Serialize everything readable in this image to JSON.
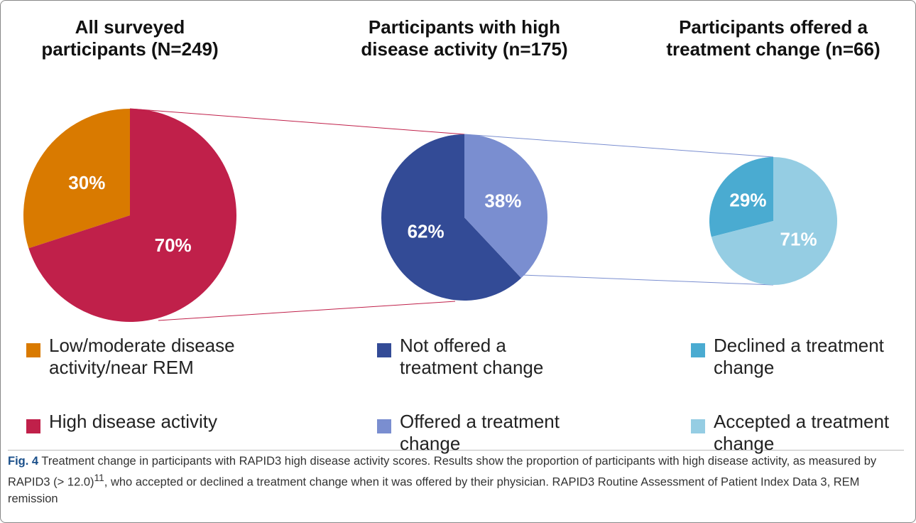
{
  "chart_data": [
    {
      "type": "pie",
      "title": "All surveyed participants (N=249)",
      "categories": [
        "Low/moderate disease activity/near REM",
        "High disease activity"
      ],
      "values": [
        30,
        70
      ],
      "value_labels": [
        "30%",
        "70%"
      ],
      "colors": [
        "#d97a00",
        "#c0204a"
      ]
    },
    {
      "type": "pie",
      "title": "Participants with high disease activity (n=175)",
      "categories": [
        "Not offered a treatment change",
        "Offered a treatment change"
      ],
      "values": [
        62,
        38
      ],
      "value_labels": [
        "62%",
        "38%"
      ],
      "colors": [
        "#334b96",
        "#7a8ed0"
      ]
    },
    {
      "type": "pie",
      "title": "Participants offered a treatment change (n=66)",
      "categories": [
        "Declined a treatment change",
        "Accepted a treatment change"
      ],
      "values": [
        29,
        71
      ],
      "value_labels": [
        "29%",
        "71%"
      ],
      "colors": [
        "#4aabd1",
        "#95cde3"
      ]
    }
  ],
  "caption": {
    "label": "Fig. 4",
    "text_before": "Treatment change in participants with RAPID3 high disease activity scores. Results show the proportion of participants with high disease activity, as measured by RAPID3 (> 12.0)",
    "superscript": "11",
    "text_after": ", who accepted or declined a treatment change when it was offered by their physician. RAPID3 Routine Assessment of Patient Index Data 3, REM remission"
  }
}
